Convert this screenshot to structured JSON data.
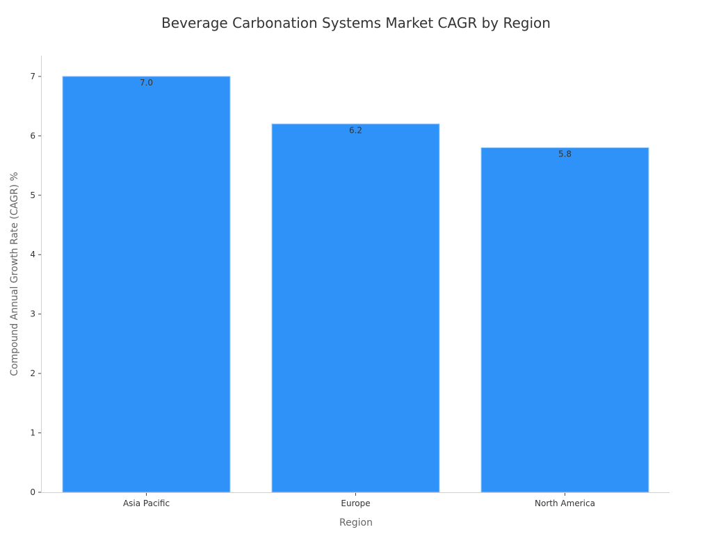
{
  "chart_data": {
    "type": "bar",
    "title": "Beverage Carbonation Systems Market CAGR by Region",
    "xlabel": "Region",
    "ylabel": "Compound Annual Growth Rate (CAGR) %",
    "categories": [
      "Asia Pacific",
      "Europe",
      "North America"
    ],
    "values": [
      7.0,
      6.2,
      5.8
    ],
    "data_labels": [
      "7.0",
      "6.2",
      "5.8"
    ],
    "ylim": [
      0,
      7.35
    ],
    "yticks": [
      0,
      1,
      2,
      3,
      4,
      5,
      6,
      7
    ],
    "ytick_labels": [
      "0",
      "1",
      "2",
      "3",
      "4",
      "5",
      "6",
      "7"
    ],
    "grid": false,
    "bar_color": "#2f92f8",
    "bar_edge_color": "#8fc3fb"
  }
}
